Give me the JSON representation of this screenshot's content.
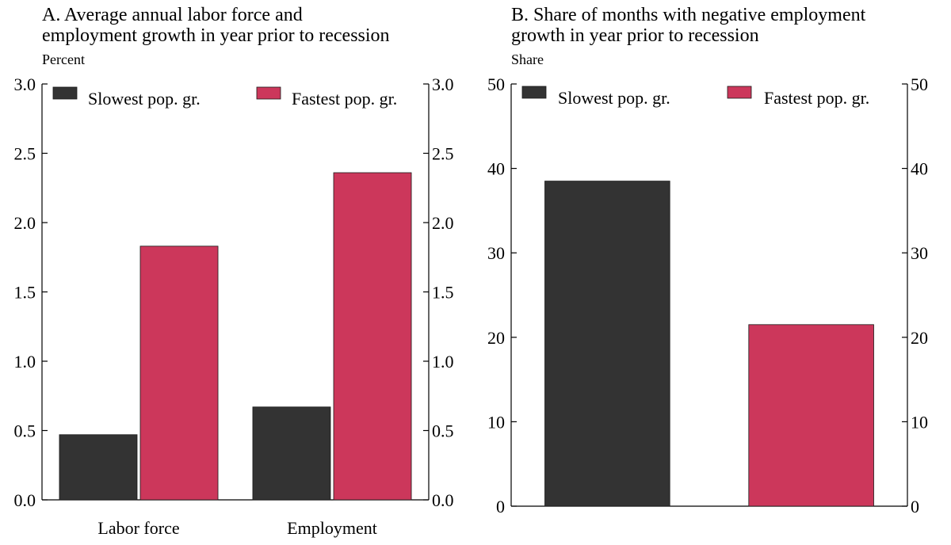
{
  "colors": {
    "slowest": "#333333",
    "fastest": "#CC375B",
    "axis": "#000000",
    "background": "#ffffff"
  },
  "chart_data": [
    {
      "id": "A",
      "type": "bar",
      "title_lines": [
        "A. Average annual labor force and",
        "employment growth in year prior to recession"
      ],
      "unit_label": "Percent",
      "categories": [
        "Labor force",
        "Employment"
      ],
      "series": [
        {
          "name": "Slowest pop. gr.",
          "values": [
            0.47,
            0.67
          ],
          "color": "#333333"
        },
        {
          "name": "Fastest pop. gr.",
          "values": [
            1.83,
            2.36
          ],
          "color": "#CC375B"
        }
      ],
      "ylim": [
        0,
        3.0
      ],
      "yticks": [
        "0.0",
        "0.5",
        "1.0",
        "1.5",
        "2.0",
        "2.5",
        "3.0"
      ],
      "ytick_values": [
        0,
        0.5,
        1.0,
        1.5,
        2.0,
        2.5,
        3.0
      ],
      "legend_placement": "top",
      "grid": false,
      "dual_y_axis": true
    },
    {
      "id": "B",
      "type": "bar",
      "title_lines": [
        "B. Share of months with negative employment",
        "growth in year prior to recession"
      ],
      "unit_label": "Share",
      "categories": [
        ""
      ],
      "series": [
        {
          "name": "Slowest pop. gr.",
          "values": [
            38.5
          ],
          "color": "#333333"
        },
        {
          "name": "Fastest pop. gr.",
          "values": [
            21.5
          ],
          "color": "#CC375B"
        }
      ],
      "ylim": [
        0,
        50
      ],
      "yticks": [
        "0",
        "10",
        "20",
        "30",
        "40",
        "50"
      ],
      "ytick_values": [
        0,
        10,
        20,
        30,
        40,
        50
      ],
      "legend_placement": "top",
      "grid": false,
      "dual_y_axis": true
    }
  ]
}
